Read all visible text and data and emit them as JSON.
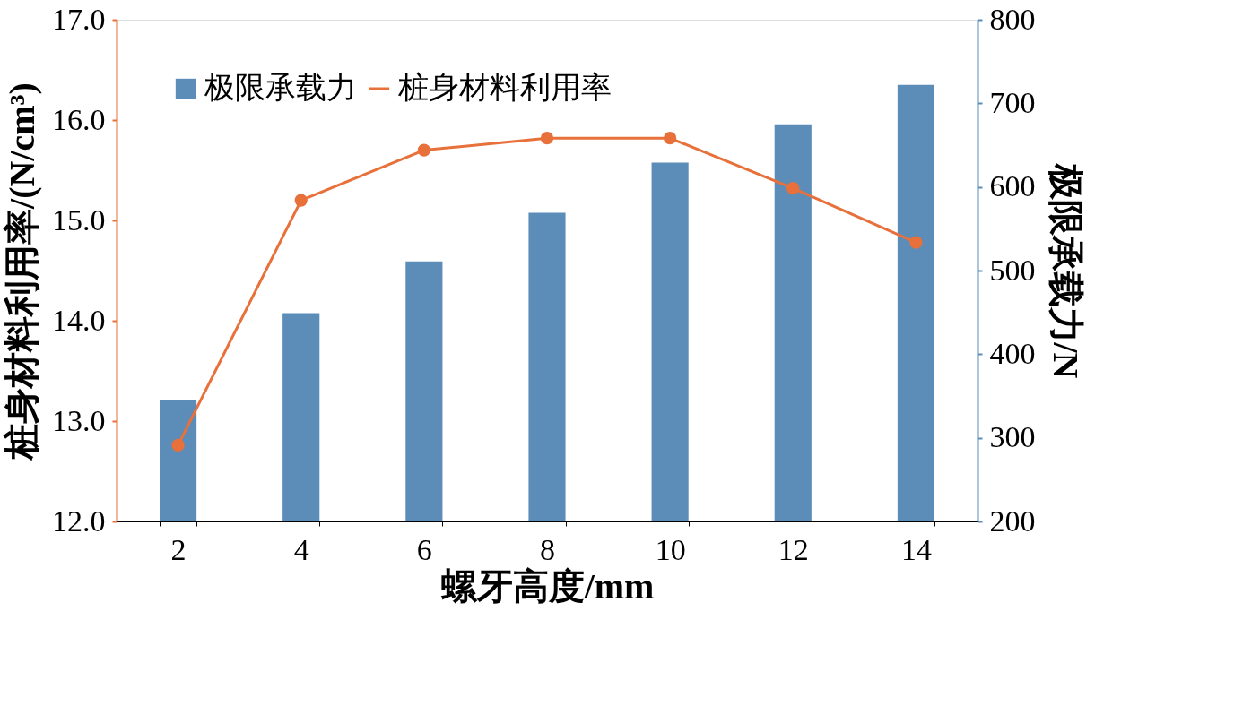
{
  "chart_data": {
    "type": "bar",
    "xlabel": "螺牙高度/mm",
    "ylabel": "桩身材料利用率/(N/cm³)",
    "y2label": "极限承载力/N",
    "categories": [
      "2",
      "4",
      "6",
      "8",
      "10",
      "12",
      "14"
    ],
    "series": [
      {
        "name": "极限承载力",
        "axis": "y2",
        "color": "#5b8db8",
        "values": [
          345,
          449,
          511,
          569,
          629,
          675,
          722
        ]
      },
      {
        "name": "桩身材料利用率",
        "type": "line",
        "color": "#e8703a",
        "marker": "circle",
        "values": [
          12.76,
          15.2,
          15.7,
          15.82,
          15.82,
          15.32,
          14.78
        ]
      }
    ],
    "ylim": [
      12,
      17
    ],
    "yticks": [
      {
        "value": 12,
        "label": "12.0"
      },
      {
        "value": 13,
        "label": "13.0"
      },
      {
        "value": 14,
        "label": "14.0"
      },
      {
        "value": 15,
        "label": "15.0"
      },
      {
        "value": 16,
        "label": "16.0"
      },
      {
        "value": 17,
        "label": "17.0"
      }
    ],
    "y2lim": [
      200,
      800
    ],
    "y2ticks": [
      200,
      300,
      400,
      500,
      600,
      700,
      800
    ],
    "legend": "top left",
    "grid": false
  }
}
